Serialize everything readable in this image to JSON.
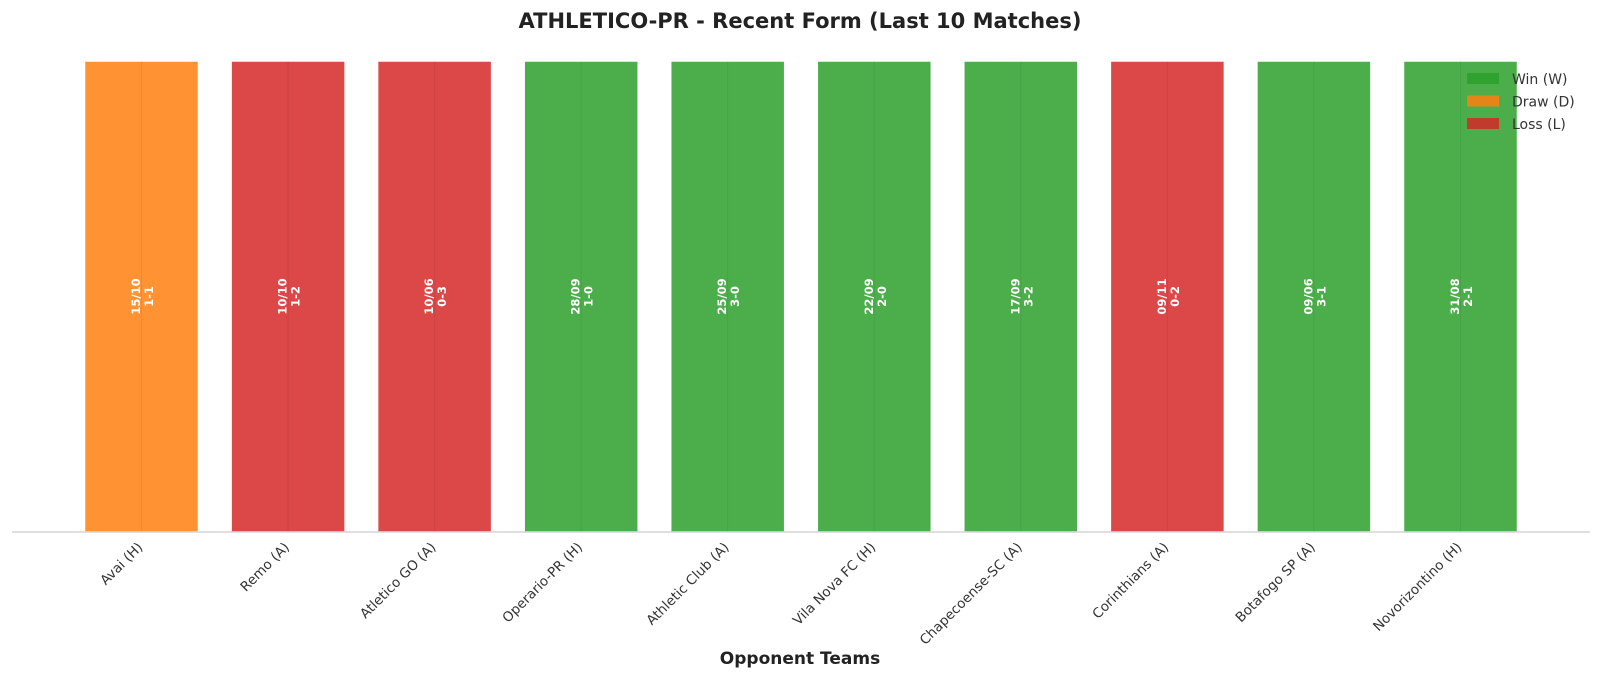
{
  "chart_data": {
    "type": "bar",
    "title": "ATHLETICO-PR - Recent Form (Last 10 Matches)",
    "xlabel": "Opponent Teams",
    "ylabel": "",
    "ylim": [
      0,
      1
    ],
    "grid": false,
    "legend_position": "top-right",
    "categories": [
      "Avai (H)",
      "Remo (A)",
      "Atletico GO (A)",
      "Operario-PR (H)",
      "Athletic Club (A)",
      "Vila Nova FC (H)",
      "Chapecoense-SC (A)",
      "Corinthians (A)",
      "Botafogo SP (A)",
      "Novorizontino (H)"
    ],
    "values": [
      1,
      1,
      1,
      1,
      1,
      1,
      1,
      1,
      1,
      1
    ],
    "results": [
      "D",
      "L",
      "L",
      "W",
      "W",
      "W",
      "W",
      "L",
      "W",
      "W"
    ],
    "dates": [
      "15/10",
      "10/10",
      "10/06",
      "28/09",
      "25/09",
      "22/09",
      "17/09",
      "09/11",
      "09/06",
      "31/08"
    ],
    "scores": [
      "1-1",
      "1-2",
      "0-3",
      "1-0",
      "3-0",
      "2-0",
      "3-2",
      "0-2",
      "3-1",
      "2-1"
    ],
    "colors": {
      "W": "#2ca02c",
      "D": "#ff7f0e",
      "L": "#d62728"
    },
    "legend": [
      {
        "key": "W",
        "label": "Win (W)"
      },
      {
        "key": "D",
        "label": "Draw (D)"
      },
      {
        "key": "L",
        "label": "Loss (L)"
      }
    ]
  }
}
